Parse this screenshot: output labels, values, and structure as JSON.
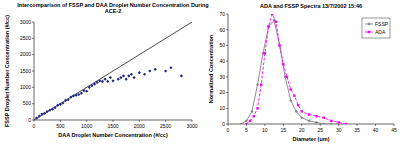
{
  "chart_data": [
    {
      "type": "scatter",
      "title": "Intercomparison of FSSP and DAA Droplet Number Concentration During ACE-2",
      "x_label": "DAA Droplet Number Concentration (#/cc)",
      "y_label": "FSSP Droplet Number Concentration (#/cc)",
      "x": [
        50,
        100,
        150,
        200,
        250,
        300,
        350,
        400,
        450,
        500,
        550,
        600,
        650,
        700,
        750,
        800,
        850,
        900,
        950,
        1000,
        1050,
        1100,
        1150,
        1200,
        1250,
        1300,
        1350,
        1400,
        1450,
        1500,
        1600,
        1650,
        1700,
        1750,
        1800,
        1850,
        1900,
        2000,
        2100,
        2200,
        2300,
        2500,
        2600,
        2800
      ],
      "values": [
        60,
        120,
        180,
        200,
        260,
        300,
        330,
        380,
        450,
        480,
        520,
        600,
        620,
        700,
        740,
        760,
        780,
        820,
        900,
        880,
        1000,
        1050,
        1100,
        1150,
        1200,
        1180,
        1250,
        1180,
        1300,
        1200,
        1250,
        1300,
        1350,
        1250,
        1350,
        1400,
        1300,
        1450,
        1400,
        1500,
        1550,
        1500,
        1600,
        1350
      ],
      "color": "#1f2a80",
      "marker": "diamond",
      "xlim": [
        0,
        3000
      ],
      "xticks": [
        0,
        500,
        1000,
        1500,
        2000,
        2500,
        3000
      ],
      "ylim": [
        0,
        3000
      ],
      "yticks": [
        0,
        500,
        1000,
        1500,
        2000,
        2500,
        3000
      ],
      "grid": false
    },
    {
      "type": "line",
      "title": "ADA and FSSP Spectra 13/7/2002 15:46",
      "x_label": "Diameter (um)",
      "y_label": "Normalized Concentration",
      "series": [
        {
          "name": "FSSP",
          "color": "#7f7f7f",
          "marker": "diamond",
          "line_style": "solid",
          "x": [
            3.5,
            5,
            6.5,
            8,
            9.5,
            11,
            12.5,
            14,
            15.5,
            17,
            18.5,
            20,
            22,
            24,
            26,
            28
          ],
          "values": [
            0,
            2,
            8,
            25,
            45,
            62,
            66,
            50,
            30,
            15,
            8,
            4,
            2,
            1,
            0,
            0
          ]
        },
        {
          "name": "ADA",
          "color": "#ff00ff",
          "marker": "square",
          "line_style": "dashed",
          "x": [
            5,
            6,
            7,
            8,
            9,
            10,
            11,
            12,
            13,
            14,
            15,
            16,
            17,
            18,
            19,
            20,
            22,
            24,
            26,
            28,
            30,
            32
          ],
          "values": [
            0,
            2,
            5,
            10,
            25,
            45,
            62,
            70,
            65,
            50,
            38,
            30,
            22,
            18,
            12,
            8,
            6,
            5,
            4,
            2,
            1,
            0
          ]
        }
      ],
      "xlim": [
        0,
        45
      ],
      "xticks": [
        0,
        5,
        10,
        15,
        20,
        25,
        30,
        35,
        40,
        45
      ],
      "ylim": [
        0,
        70
      ],
      "yticks": [
        0,
        10,
        20,
        30,
        40,
        50,
        60,
        70
      ],
      "legend": "top-right",
      "grid": false
    }
  ]
}
